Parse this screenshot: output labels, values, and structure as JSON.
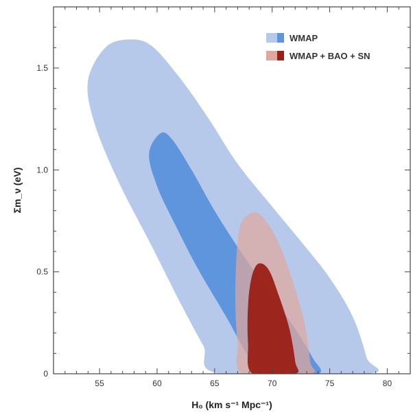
{
  "chart_data": {
    "type": "contour",
    "xlabel": "H₀ (km s⁻¹ Mpc⁻¹)",
    "ylabel": "Σm_ν (eV)",
    "xlim": [
      51,
      82
    ],
    "ylim": [
      0,
      1.8
    ],
    "xticks": [
      55,
      60,
      65,
      70,
      75,
      80
    ],
    "xtick_labels": [
      "55",
      "60",
      "65",
      "70",
      "75",
      "80"
    ],
    "yticks": [
      0,
      0.5,
      1.0,
      1.5
    ],
    "ytick_labels": [
      "0",
      "0.5",
      "1.0",
      "1.5"
    ],
    "legend_placement": "top-right",
    "grid": false,
    "series": [
      {
        "name": "WMAP",
        "color_outer": "#b6c9ea",
        "color_inner": "#5f95dc",
        "regions": [
          {
            "level": "95%",
            "points": [
              [
                57.5,
                1.64
              ],
              [
                59.5,
                1.61
              ],
              [
                62,
                1.45
              ],
              [
                64.5,
                1.25
              ],
              [
                67,
                1.03
              ],
              [
                70,
                0.82
              ],
              [
                72.5,
                0.65
              ],
              [
                75,
                0.47
              ],
              [
                77,
                0.28
              ],
              [
                78.2,
                0.08
              ],
              [
                78.3,
                0
              ],
              [
                65.5,
                0
              ],
              [
                64,
                0.14
              ],
              [
                62,
                0.35
              ],
              [
                59.5,
                0.63
              ],
              [
                56.5,
                0.96
              ],
              [
                54.5,
                1.24
              ],
              [
                54,
                1.44
              ],
              [
                55.5,
                1.6
              ]
            ]
          },
          {
            "level": "68%",
            "points": [
              [
                60.3,
                1.18
              ],
              [
                61.3,
                1.15
              ],
              [
                63,
                1.0
              ],
              [
                65,
                0.8
              ],
              [
                67.5,
                0.58
              ],
              [
                70,
                0.38
              ],
              [
                72,
                0.22
              ],
              [
                73.5,
                0.08
              ],
              [
                74,
                0
              ],
              [
                69.5,
                0
              ],
              [
                68,
                0.08
              ],
              [
                66,
                0.28
              ],
              [
                63.5,
                0.52
              ],
              [
                61.5,
                0.74
              ],
              [
                60,
                0.92
              ],
              [
                59.3,
                1.08
              ]
            ]
          }
        ]
      },
      {
        "name": "WMAP + BAO + SN",
        "color_outer": "#dfa89e",
        "color_inner": "#9a1f15",
        "regions": [
          {
            "level": "95%",
            "points": [
              [
                67.9,
                0.78
              ],
              [
                69,
                0.78
              ],
              [
                70.5,
                0.65
              ],
              [
                71.8,
                0.45
              ],
              [
                72.8,
                0.25
              ],
              [
                73.3,
                0.06
              ],
              [
                73.3,
                0
              ],
              [
                67.5,
                0
              ],
              [
                67,
                0.15
              ],
              [
                66.8,
                0.35
              ],
              [
                66.9,
                0.58
              ],
              [
                67.2,
                0.72
              ]
            ]
          },
          {
            "level": "68%",
            "points": [
              [
                68.8,
                0.54
              ],
              [
                69.7,
                0.51
              ],
              [
                70.6,
                0.38
              ],
              [
                71.5,
                0.22
              ],
              [
                72,
                0.06
              ],
              [
                72,
                0
              ],
              [
                68.3,
                0
              ],
              [
                67.9,
                0.15
              ],
              [
                67.9,
                0.33
              ],
              [
                68.2,
                0.47
              ]
            ]
          }
        ]
      }
    ]
  }
}
